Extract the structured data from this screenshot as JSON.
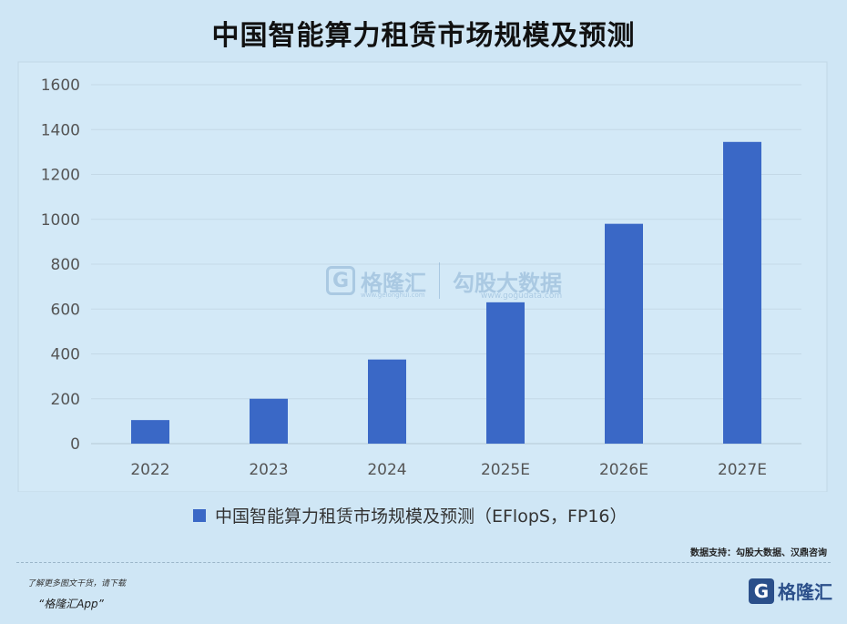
{
  "title": "中国智能算力租赁市场规模及预测",
  "chart_data": {
    "type": "bar",
    "categories": [
      "2022",
      "2023",
      "2024",
      "2025E",
      "2026E",
      "2027E"
    ],
    "series": [
      {
        "name": "中国智能算力租赁市场规模及预测（EFlopS，FP16）",
        "values": [
          105,
          200,
          375,
          630,
          980,
          1345
        ]
      }
    ],
    "ylim": [
      0,
      1600
    ],
    "yticks": [
      0,
      200,
      400,
      600,
      800,
      1000,
      1200,
      1400,
      1600
    ],
    "grid": true,
    "legend": "bottom",
    "color": "#3a68c6"
  },
  "watermark": {
    "logo": "G",
    "brand": "格隆汇",
    "brand_url": "www.gelonghui.com",
    "second": "勾股大数据",
    "second_url": "www.gogudata.com"
  },
  "source": "数据支持：勾股大数据、汉鼎咨询",
  "footer": {
    "hint": "了解更多图文干货，请下载",
    "app": "“格隆汇App”",
    "logo_letter": "G",
    "logo_text": "格隆汇"
  }
}
